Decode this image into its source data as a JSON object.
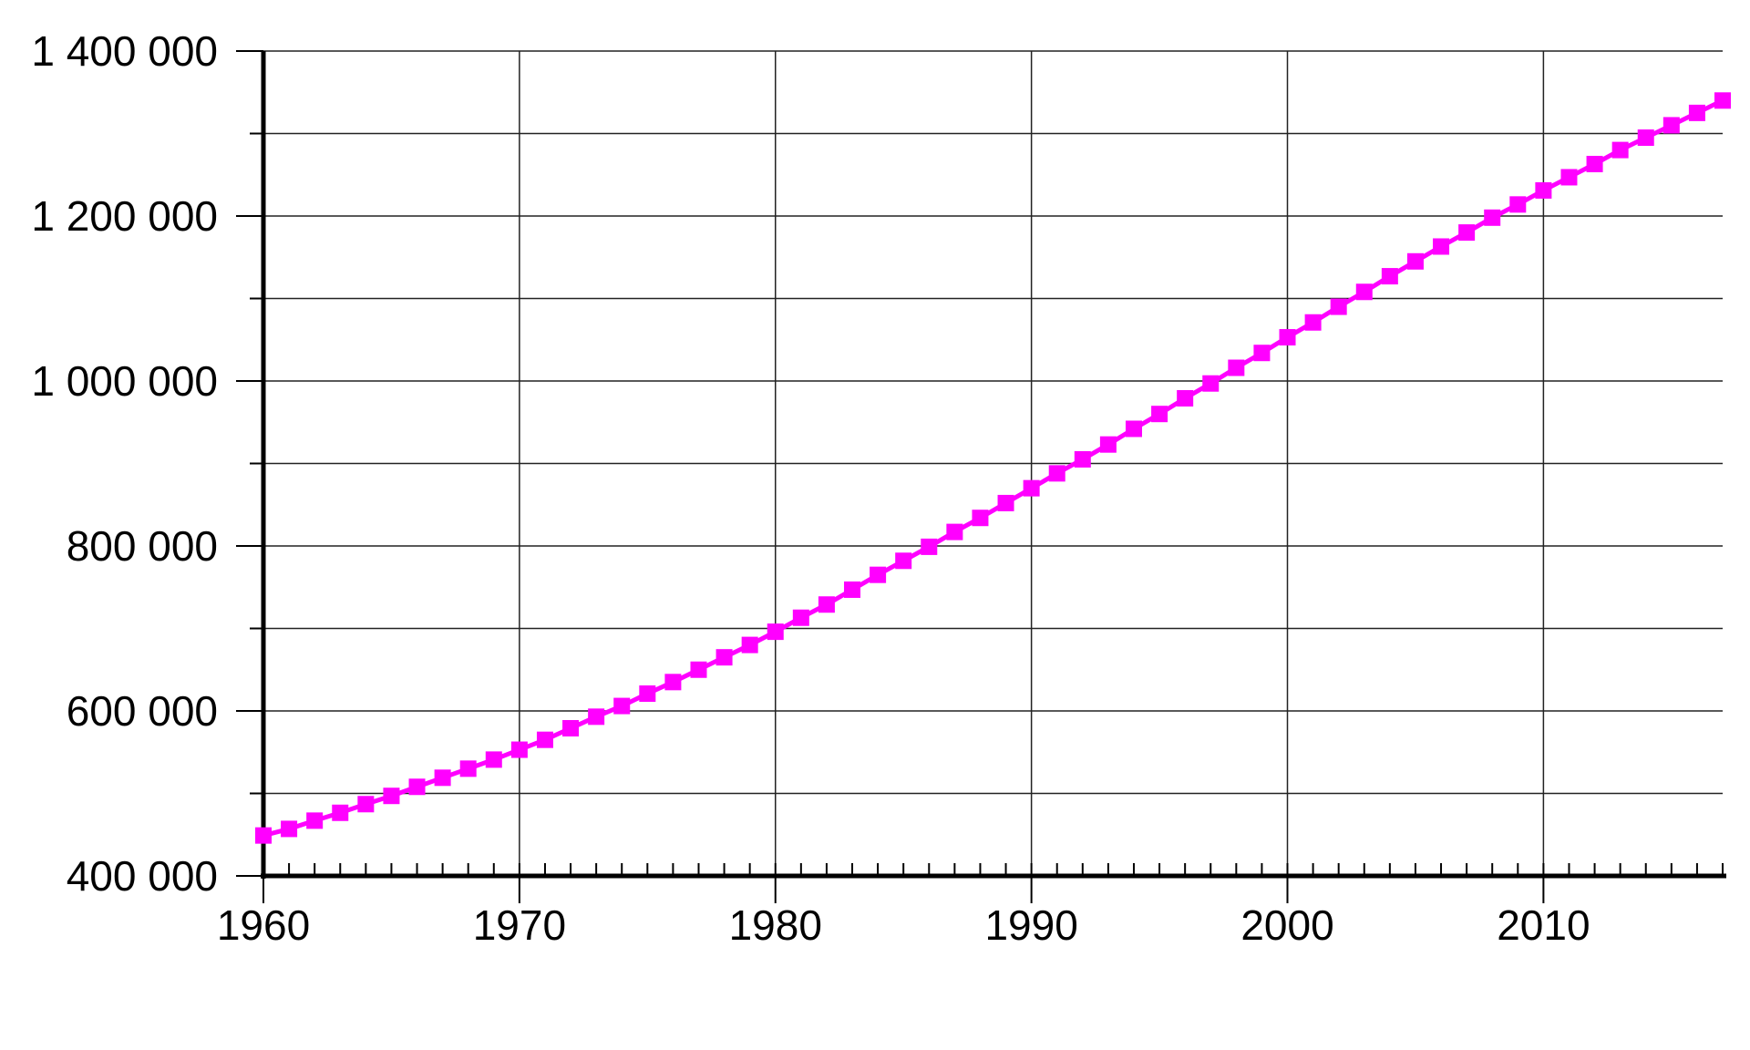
{
  "chart_data": {
    "type": "line",
    "color": "#ff00ff",
    "grid": true,
    "x": [
      1960,
      1961,
      1962,
      1963,
      1964,
      1965,
      1966,
      1967,
      1968,
      1969,
      1970,
      1971,
      1972,
      1973,
      1974,
      1975,
      1976,
      1977,
      1978,
      1979,
      1980,
      1981,
      1982,
      1983,
      1984,
      1985,
      1986,
      1987,
      1988,
      1989,
      1990,
      1991,
      1992,
      1993,
      1994,
      1995,
      1996,
      1997,
      1998,
      1999,
      2000,
      2001,
      2002,
      2003,
      2004,
      2005,
      2006,
      2007,
      2008,
      2009,
      2010,
      2011,
      2012,
      2013,
      2014,
      2015,
      2016,
      2017
    ],
    "values": [
      449000,
      457000,
      467000,
      476500,
      487000,
      497000,
      508000,
      519000,
      530000,
      541000,
      553000,
      565000,
      579000,
      593000,
      606000,
      621000,
      635000,
      650000,
      665000,
      680000,
      696000,
      713000,
      729000,
      747000,
      765000,
      782000,
      799000,
      817000,
      834000,
      852000,
      870000,
      888000,
      905000,
      923000,
      942000,
      960000,
      979000,
      997000,
      1016000,
      1034000,
      1053000,
      1071000,
      1090000,
      1108000,
      1127000,
      1145000,
      1163000,
      1180000,
      1198000,
      1214000,
      1231000,
      1247000,
      1263000,
      1280000,
      1295000,
      1310000,
      1325000,
      1340000
    ],
    "xlim": [
      1960,
      2017
    ],
    "xticks": [
      1960,
      1970,
      1980,
      1990,
      2000,
      2010
    ],
    "ylim": [
      400000,
      1400000
    ],
    "yticks": [
      {
        "value": 400000,
        "label": "400 000"
      },
      {
        "value": 600000,
        "label": "600 000"
      },
      {
        "value": 800000,
        "label": "800 000"
      },
      {
        "value": 1000000,
        "label": "1 000 000"
      },
      {
        "value": 1200000,
        "label": "1 200 000"
      },
      {
        "value": 1400000,
        "label": "1 400 000"
      }
    ],
    "yminorticks": [
      500000,
      700000,
      900000,
      1100000,
      1300000
    ]
  }
}
